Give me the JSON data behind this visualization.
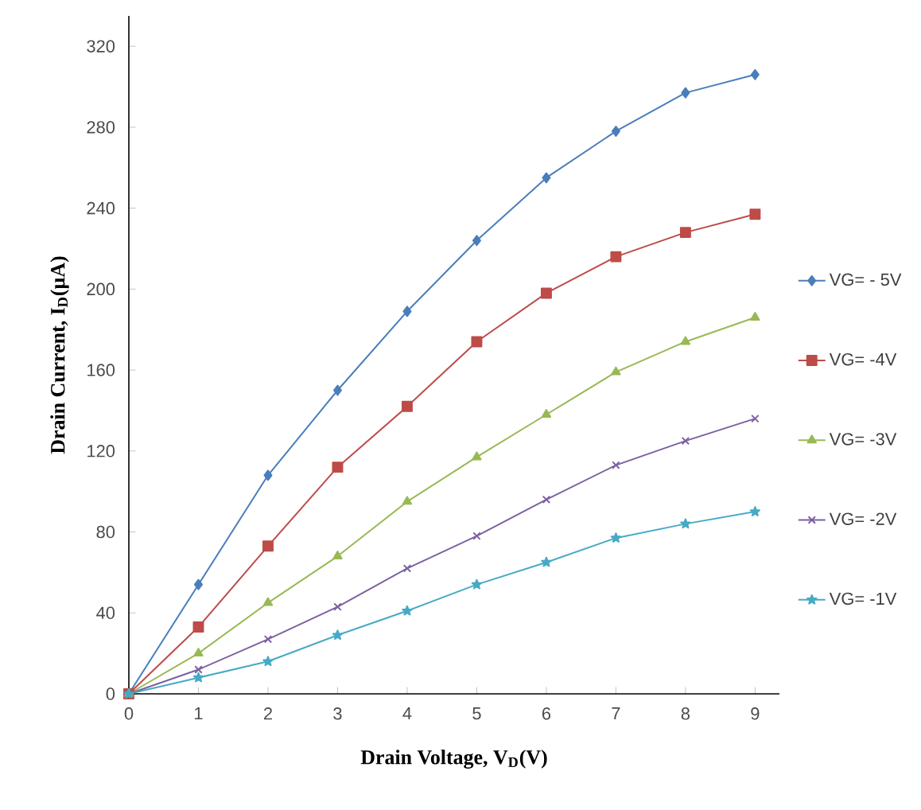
{
  "chart_data": {
    "type": "line",
    "xlabel": "Drain Voltage, V$_{D}$(V)",
    "ylabel": "Drain Current, I$_{D}$(µA)",
    "x": [
      0,
      1,
      2,
      3,
      4,
      5,
      6,
      7,
      8,
      9
    ],
    "xlim": [
      0,
      9.35
    ],
    "xticks": [
      0,
      1,
      2,
      3,
      4,
      5,
      6,
      7,
      8,
      9
    ],
    "ylim": [
      0,
      335
    ],
    "yticks": [
      0,
      40,
      80,
      120,
      160,
      200,
      240,
      280,
      320
    ],
    "legend": "right",
    "line_style": "solid",
    "series": [
      {
        "name": "VG= - 5V",
        "color": "#4a7ebb",
        "marker": "diamond",
        "values": [
          0,
          54,
          108,
          150,
          189,
          224,
          255,
          278,
          297,
          306
        ]
      },
      {
        "name": "VG= -4V",
        "color": "#be4b48",
        "marker": "square",
        "values": [
          0,
          33,
          73,
          112,
          142,
          174,
          198,
          216,
          228,
          237
        ]
      },
      {
        "name": "VG= -3V",
        "color": "#98b954",
        "marker": "triangle",
        "values": [
          0,
          20,
          45,
          68,
          95,
          117,
          138,
          159,
          174,
          186
        ]
      },
      {
        "name": "VG= -2V",
        "color": "#7d60a0",
        "marker": "cross",
        "values": [
          0,
          12,
          27,
          43,
          62,
          78,
          96,
          113,
          125,
          136
        ]
      },
      {
        "name": "VG= -1V",
        "color": "#46aac5",
        "marker": "star",
        "values": [
          0,
          8,
          16,
          29,
          41,
          54,
          65,
          77,
          84,
          90
        ]
      }
    ]
  }
}
